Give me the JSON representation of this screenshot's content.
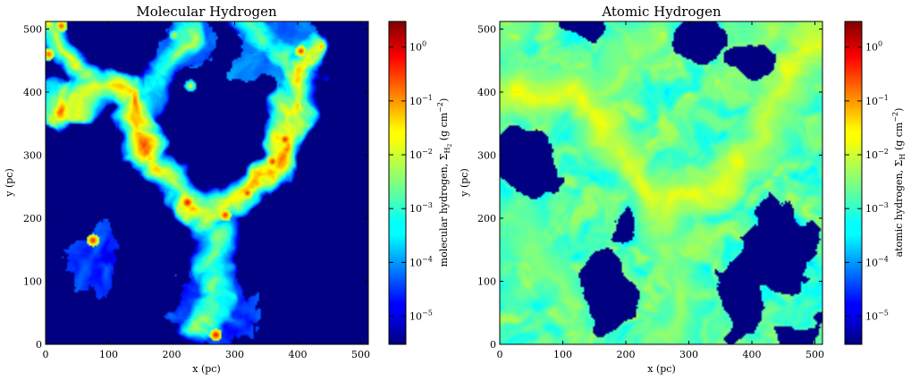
{
  "chart_data": [
    {
      "type": "heatmap",
      "title": "Molecular Hydrogen",
      "xlabel": "x (pc)",
      "ylabel": "y (pc)",
      "xlim": [
        0,
        512
      ],
      "ylim": [
        0,
        512
      ],
      "xticks": [
        "0",
        "100",
        "200",
        "300",
        "400",
        "500"
      ],
      "yticks": [
        "0",
        "100",
        "200",
        "300",
        "400",
        "500"
      ],
      "colorbar": {
        "label": "molecular hydrogen, Σ_H₂ (g cm⁻²)",
        "label_text": "molecular hydrogen, Σ",
        "label_sub": "H",
        "label_subsub": "2",
        "label_units": "(g cm",
        "label_exp": "−2",
        "label_close": ")",
        "scale": "log",
        "cmap": "jet",
        "range": [
          3e-06,
          3
        ],
        "ticks": [
          "10^0",
          "10^-1",
          "10^-2",
          "10^-3",
          "10^-4",
          "10^-5"
        ]
      },
      "structures": {
        "background_value": 3e-06,
        "filament_network": [
          {
            "path": [
              [
                0,
                370
              ],
              [
                40,
                390
              ],
              [
                90,
                400
              ],
              [
                130,
                390
              ],
              [
                150,
                330
              ],
              [
                180,
                280
              ],
              [
                220,
                240
              ],
              [
                260,
                215
              ],
              [
                300,
                230
              ],
              [
                340,
                260
              ],
              [
                370,
                300
              ],
              [
                395,
                350
              ],
              [
                405,
                400
              ],
              [
                412,
                470
              ]
            ],
            "peak": 0.03
          },
          {
            "path": [
              [
                260,
                215
              ],
              [
                268,
                160
              ],
              [
                280,
                110
              ],
              [
                270,
                60
              ],
              [
                250,
                25
              ],
              [
                235,
                10
              ]
            ],
            "peak": 0.003
          },
          {
            "path": [
              [
                150,
                395
              ],
              [
                175,
                420
              ],
              [
                200,
                455
              ],
              [
                215,
                490
              ]
            ],
            "peak": 0.002
          },
          {
            "path": [
              [
                320,
                510
              ],
              [
                355,
                470
              ],
              [
                395,
                440
              ],
              [
                410,
                400
              ]
            ],
            "peak": 0.003
          },
          {
            "path": [
              [
                0,
                500
              ],
              [
                25,
                470
              ],
              [
                50,
                430
              ],
              [
                75,
                395
              ]
            ],
            "peak": 0.01
          }
        ],
        "clumps": [
          {
            "x": 225,
            "y": 225,
            "peak": 1.0
          },
          {
            "x": 285,
            "y": 205,
            "peak": 0.5
          },
          {
            "x": 320,
            "y": 240,
            "peak": 0.4
          },
          {
            "x": 360,
            "y": 290,
            "peak": 0.5
          },
          {
            "x": 380,
            "y": 325,
            "peak": 0.6
          },
          {
            "x": 75,
            "y": 165,
            "peak": 0.6
          },
          {
            "x": 270,
            "y": 15,
            "peak": 0.8
          },
          {
            "x": 5,
            "y": 460,
            "peak": 0.3
          },
          {
            "x": 25,
            "y": 505,
            "peak": 0.3
          },
          {
            "x": 405,
            "y": 465,
            "peak": 0.4
          },
          {
            "x": 230,
            "y": 410,
            "peak": 0.02
          },
          {
            "x": 205,
            "y": 490,
            "peak": 0.02
          },
          {
            "x": 400,
            "y": 380,
            "peak": 0.05
          }
        ],
        "diffuse_patches": [
          {
            "x": 80,
            "y": 130,
            "r": 55,
            "level": 3e-05
          },
          {
            "x": 270,
            "y": 60,
            "r": 70,
            "level": 3e-05
          },
          {
            "x": 365,
            "y": 475,
            "r": 70,
            "level": 0.0001
          },
          {
            "x": 220,
            "y": 470,
            "r": 45,
            "level": 5e-05
          }
        ]
      }
    },
    {
      "type": "heatmap",
      "title": "Atomic Hydrogen",
      "xlabel": "x (pc)",
      "ylabel": "y (pc)",
      "xlim": [
        0,
        512
      ],
      "ylim": [
        0,
        512
      ],
      "xticks": [
        "0",
        "100",
        "200",
        "300",
        "400",
        "500"
      ],
      "yticks": [
        "0",
        "100",
        "200",
        "300",
        "400",
        "500"
      ],
      "colorbar": {
        "label": "atomic hydrogen, Σ_H (g cm⁻²)",
        "label_text": "atomic hydrogen, Σ",
        "label_sub": "H",
        "label_subsub": "",
        "label_units": "(g cm",
        "label_exp": "−2",
        "label_close": ")",
        "scale": "log",
        "cmap": "jet",
        "range": [
          3e-06,
          3
        ],
        "ticks": [
          "10^0",
          "10^-1",
          "10^-2",
          "10^-3",
          "10^-4",
          "10^-5"
        ]
      },
      "structures": {
        "background_value": 3e-06,
        "filament_network": [
          {
            "path": [
              [
                0,
                390
              ],
              [
                60,
                400
              ],
              [
                120,
                390
              ],
              [
                160,
                340
              ],
              [
                200,
                290
              ],
              [
                250,
                240
              ],
              [
                300,
                230
              ],
              [
                350,
                260
              ],
              [
                390,
                300
              ],
              [
                420,
                350
              ],
              [
                450,
                420
              ],
              [
                480,
                480
              ],
              [
                505,
                505
              ]
            ],
            "peak": 0.01
          },
          {
            "path": [
              [
                255,
                240
              ],
              [
                265,
                180
              ],
              [
                280,
                110
              ],
              [
                270,
                50
              ],
              [
                260,
                5
              ]
            ],
            "peak": 0.004
          },
          {
            "path": [
              [
                20,
                200
              ],
              [
                50,
                160
              ],
              [
                80,
                120
              ],
              [
                100,
                80
              ]
            ],
            "peak": 0.003
          },
          {
            "path": [
              [
                150,
                400
              ],
              [
                200,
                450
              ],
              [
                240,
                500
              ]
            ],
            "peak": 0.004
          },
          {
            "path": [
              [
                380,
                420
              ],
              [
                400,
                470
              ],
              [
                430,
                505
              ]
            ],
            "peak": 0.004
          },
          {
            "path": [
              [
                0,
                470
              ],
              [
                30,
                505
              ]
            ],
            "peak": 0.003
          }
        ],
        "voids": [
          {
            "x": 45,
            "y": 285,
            "rx": 55,
            "ry": 55,
            "level": 3e-06
          },
          {
            "x": 320,
            "y": 480,
            "rx": 45,
            "ry": 45,
            "level": 3e-06
          },
          {
            "x": 400,
            "y": 445,
            "rx": 32,
            "ry": 32,
            "level": 3e-06
          },
          {
            "x": 135,
            "y": 500,
            "rx": 40,
            "ry": 25,
            "level": 3e-06
          },
          {
            "x": 440,
            "y": 150,
            "rx": 65,
            "ry": 70,
            "level": 3e-06
          },
          {
            "x": 375,
            "y": 70,
            "rx": 45,
            "ry": 55,
            "level": 3e-06
          },
          {
            "x": 165,
            "y": 90,
            "rx": 40,
            "ry": 60,
            "level": 3e-06
          },
          {
            "x": 195,
            "y": 190,
            "rx": 25,
            "ry": 25,
            "level": 3e-06
          },
          {
            "x": 470,
            "y": 20,
            "rx": 35,
            "ry": 25,
            "level": 3e-06
          }
        ]
      }
    }
  ]
}
